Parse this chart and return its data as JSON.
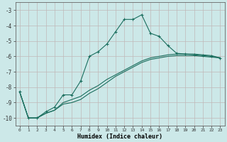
{
  "xlabel": "Humidex (Indice chaleur)",
  "bg_color": "#cce8e8",
  "grid_color": "#c0b8b8",
  "line_color": "#1a6e5e",
  "xlim": [
    -0.5,
    23.5
  ],
  "ylim": [
    -10.5,
    -2.5
  ],
  "yticks": [
    -10,
    -9,
    -8,
    -7,
    -6,
    -5,
    -4,
    -3
  ],
  "xticks": [
    0,
    1,
    2,
    3,
    4,
    5,
    6,
    7,
    8,
    9,
    10,
    11,
    12,
    13,
    14,
    15,
    16,
    17,
    18,
    19,
    20,
    21,
    22,
    23
  ],
  "line1_x": [
    0,
    1,
    2,
    3,
    4,
    5,
    6,
    7,
    8,
    9,
    10,
    11,
    12,
    13,
    14,
    15,
    16,
    17,
    18,
    19,
    20,
    21,
    22,
    23
  ],
  "line1_y": [
    -8.3,
    -10.0,
    -10.0,
    -9.6,
    -9.3,
    -8.5,
    -8.5,
    -7.6,
    -6.0,
    -5.7,
    -5.2,
    -4.4,
    -3.6,
    -3.6,
    -3.3,
    -4.5,
    -4.7,
    -5.3,
    -5.8,
    -5.85,
    -5.9,
    -5.95,
    -6.0,
    -6.1
  ],
  "line2_x": [
    0,
    1,
    2,
    3,
    4,
    5,
    6,
    7,
    8,
    9,
    10,
    11,
    12,
    13,
    14,
    15,
    16,
    17,
    18,
    19,
    20,
    21,
    22,
    23
  ],
  "line2_y": [
    -8.3,
    -10.0,
    -10.0,
    -9.7,
    -9.5,
    -9.0,
    -8.8,
    -8.6,
    -8.2,
    -7.9,
    -7.5,
    -7.2,
    -6.9,
    -6.6,
    -6.3,
    -6.1,
    -6.0,
    -5.9,
    -5.85,
    -5.85,
    -5.85,
    -5.9,
    -5.95,
    -6.1
  ],
  "line3_x": [
    0,
    1,
    2,
    3,
    4,
    5,
    6,
    7,
    8,
    9,
    10,
    11,
    12,
    13,
    14,
    15,
    16,
    17,
    18,
    19,
    20,
    21,
    22,
    23
  ],
  "line3_y": [
    -8.3,
    -10.0,
    -10.0,
    -9.7,
    -9.5,
    -9.1,
    -9.0,
    -8.8,
    -8.4,
    -8.1,
    -7.7,
    -7.3,
    -7.0,
    -6.7,
    -6.4,
    -6.2,
    -6.1,
    -6.0,
    -5.95,
    -5.95,
    -5.95,
    -6.0,
    -6.05,
    -6.1
  ]
}
